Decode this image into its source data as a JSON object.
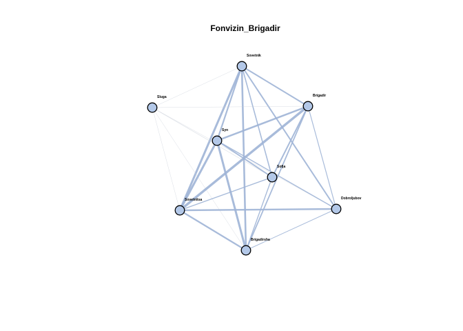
{
  "title": "Fonvizin_Brigadir",
  "colors": {
    "node_fill": "#b3c8e8",
    "node_stroke": "#000000",
    "edge": "#9fb4d6",
    "edge_faint": "#c9ced9"
  },
  "nodes": [
    {
      "id": "sovetnik",
      "label": "Sovetnik"
    },
    {
      "id": "sluga",
      "label": "Sluga"
    },
    {
      "id": "brigadir",
      "label": "Brigadir"
    },
    {
      "id": "syn",
      "label": "Syn"
    },
    {
      "id": "sofja",
      "label": "Sofja"
    },
    {
      "id": "sovetnitsa",
      "label": "Sovetnitsa"
    },
    {
      "id": "dobroljubov",
      "label": "Dobroljubov"
    },
    {
      "id": "brigadirsha",
      "label": "Brigadirsha"
    }
  ],
  "edges": [
    {
      "source": "sovetnik",
      "target": "sluga",
      "weight": 0.5
    },
    {
      "source": "sovetnik",
      "target": "brigadir",
      "weight": 2
    },
    {
      "source": "sovetnik",
      "target": "syn",
      "weight": 2.2
    },
    {
      "source": "sovetnik",
      "target": "sofja",
      "weight": 1.6
    },
    {
      "source": "sovetnik",
      "target": "sovetnitsa",
      "weight": 3
    },
    {
      "source": "sovetnik",
      "target": "dobroljubov",
      "weight": 2
    },
    {
      "source": "sovetnik",
      "target": "brigadirsha",
      "weight": 2.6
    },
    {
      "source": "sluga",
      "target": "brigadir",
      "weight": 0.5
    },
    {
      "source": "sluga",
      "target": "sofja",
      "weight": 0.6
    },
    {
      "source": "sluga",
      "target": "sovetnitsa",
      "weight": 0.5
    },
    {
      "source": "sluga",
      "target": "dobroljubov",
      "weight": 0.5
    },
    {
      "source": "sluga",
      "target": "brigadirsha",
      "weight": 0.5
    },
    {
      "source": "brigadir",
      "target": "syn",
      "weight": 2.5
    },
    {
      "source": "brigadir",
      "target": "sofja",
      "weight": 2
    },
    {
      "source": "brigadir",
      "target": "sovetnitsa",
      "weight": 3.4
    },
    {
      "source": "brigadir",
      "target": "dobroljubov",
      "weight": 1.2
    },
    {
      "source": "brigadir",
      "target": "brigadirsha",
      "weight": 1.8
    },
    {
      "source": "syn",
      "target": "sofja",
      "weight": 1.8
    },
    {
      "source": "syn",
      "target": "sovetnitsa",
      "weight": 3
    },
    {
      "source": "syn",
      "target": "dobroljubov",
      "weight": 1.4
    },
    {
      "source": "syn",
      "target": "brigadirsha",
      "weight": 3
    },
    {
      "source": "sofja",
      "target": "sovetnitsa",
      "weight": 1.4
    },
    {
      "source": "sofja",
      "target": "brigadirsha",
      "weight": 1.4
    },
    {
      "source": "sovetnitsa",
      "target": "dobroljubov",
      "weight": 2.4
    },
    {
      "source": "sovetnitsa",
      "target": "brigadirsha",
      "weight": 2.2
    },
    {
      "source": "dobroljubov",
      "target": "brigadirsha",
      "weight": 1
    }
  ]
}
